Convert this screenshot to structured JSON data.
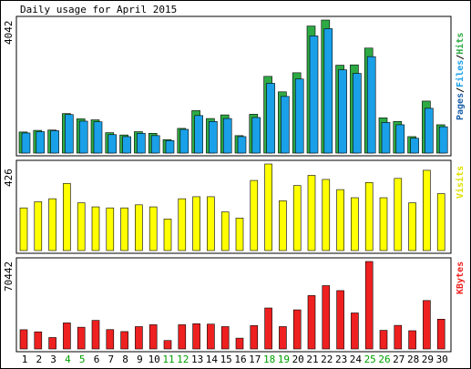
{
  "colors": {
    "hits": "#2eaa44",
    "files": "#1aa0e8",
    "pages": "#1a5fa8",
    "visits": "#ffff00",
    "kbytes": "#ee2020",
    "weekend": "#00a000",
    "weekday": "#000000",
    "background": "#ffffff",
    "panel_bg": "#ffffff"
  },
  "chart_data": [
    {
      "type": "bar",
      "title": "Daily usage for April 2015",
      "ymax_label": "4042",
      "ylim": [
        0,
        4042
      ],
      "legend_right": {
        "pages": "Pages",
        "files": "Files",
        "hits": "Hits",
        "sep1": "/",
        "sep2": "/"
      },
      "categories": [
        "1",
        "2",
        "3",
        "4",
        "5",
        "6",
        "7",
        "8",
        "9",
        "10",
        "11",
        "12",
        "13",
        "14",
        "15",
        "16",
        "17",
        "18",
        "19",
        "20",
        "21",
        "22",
        "23",
        "24",
        "25",
        "26",
        "27",
        "28",
        "29",
        "30"
      ],
      "series": [
        {
          "name": "Hits",
          "values": [
            640,
            690,
            700,
            1200,
            1040,
            1010,
            620,
            550,
            650,
            600,
            410,
            750,
            1290,
            1050,
            1160,
            530,
            1180,
            2330,
            1860,
            2440,
            3860,
            4042,
            2670,
            2680,
            3190,
            1070,
            960,
            500,
            1580,
            860
          ]
        },
        {
          "name": "Files",
          "values": [
            610,
            650,
            680,
            1170,
            970,
            950,
            560,
            500,
            600,
            530,
            380,
            720,
            1140,
            960,
            1050,
            500,
            1080,
            2120,
            1720,
            2250,
            3560,
            3780,
            2530,
            2420,
            2930,
            930,
            860,
            450,
            1360,
            800
          ]
        },
        {
          "name": "Pages",
          "values": [
            0,
            0,
            0,
            0,
            0,
            0,
            0,
            0,
            0,
            0,
            0,
            0,
            0,
            0,
            0,
            0,
            0,
            0,
            0,
            0,
            0,
            0,
            0,
            0,
            0,
            0,
            0,
            0,
            0,
            0
          ]
        }
      ]
    },
    {
      "type": "bar",
      "ymax_label": "426",
      "ylim": [
        0,
        426
      ],
      "legend_right": "Visits",
      "categories": [
        "1",
        "2",
        "3",
        "4",
        "5",
        "6",
        "7",
        "8",
        "9",
        "10",
        "11",
        "12",
        "13",
        "14",
        "15",
        "16",
        "17",
        "18",
        "19",
        "20",
        "21",
        "22",
        "23",
        "24",
        "25",
        "26",
        "27",
        "28",
        "29",
        "30"
      ],
      "series": [
        {
          "name": "Visits",
          "values": [
            210,
            240,
            255,
            330,
            235,
            215,
            210,
            210,
            225,
            215,
            155,
            255,
            265,
            265,
            190,
            160,
            345,
            426,
            245,
            320,
            370,
            350,
            300,
            260,
            335,
            260,
            355,
            235,
            395,
            280
          ]
        }
      ]
    },
    {
      "type": "bar",
      "ymax_label": "70442",
      "ylim": [
        0,
        70442
      ],
      "legend_right": "KBytes",
      "categories": [
        "1",
        "2",
        "3",
        "4",
        "5",
        "6",
        "7",
        "8",
        "9",
        "10",
        "11",
        "12",
        "13",
        "14",
        "15",
        "16",
        "17",
        "18",
        "19",
        "20",
        "21",
        "22",
        "23",
        "24",
        "25",
        "26",
        "27",
        "28",
        "29",
        "30"
      ],
      "series": [
        {
          "name": "KBytes",
          "values": [
            15500,
            13800,
            9200,
            21000,
            17500,
            23000,
            15600,
            14000,
            18000,
            19500,
            6800,
            19500,
            20300,
            20000,
            18000,
            8700,
            18800,
            33000,
            18000,
            31500,
            43000,
            51000,
            47000,
            29000,
            70442,
            15000,
            19000,
            14700,
            39000,
            24000
          ]
        }
      ]
    }
  ]
}
